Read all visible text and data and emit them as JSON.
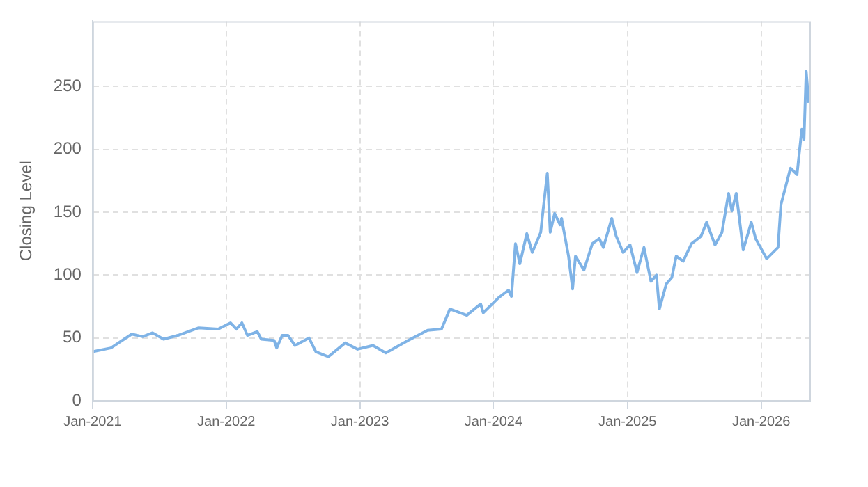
{
  "chart_data": {
    "type": "line",
    "ylabel": "Closing Level",
    "x": [
      "2021-01-01",
      "2021-02-20",
      "2021-04-18",
      "2021-05-18",
      "2021-06-14",
      "2021-07-14",
      "2021-08-22",
      "2021-10-18",
      "2021-12-10",
      "2022-01-13",
      "2022-01-29",
      "2022-02-13",
      "2022-02-28",
      "2022-03-27",
      "2022-04-07",
      "2022-05-12",
      "2022-05-19",
      "2022-06-03",
      "2022-06-19",
      "2022-07-08",
      "2022-08-15",
      "2022-09-03",
      "2022-10-07",
      "2022-11-22",
      "2022-12-26",
      "2023-02-06",
      "2023-03-13",
      "2023-05-13",
      "2023-07-05",
      "2023-08-12",
      "2023-09-04",
      "2023-10-20",
      "2023-11-27",
      "2023-12-04",
      "2024-01-15",
      "2024-02-11",
      "2024-02-19",
      "2024-03-01",
      "2024-03-13",
      "2024-04-01",
      "2024-04-16",
      "2024-05-09",
      "2024-05-16",
      "2024-05-27",
      "2024-06-04",
      "2024-06-16",
      "2024-07-01",
      "2024-07-05",
      "2024-07-24",
      "2024-08-04",
      "2024-08-12",
      "2024-09-04",
      "2024-09-27",
      "2024-10-16",
      "2024-10-27",
      "2024-11-19",
      "2024-12-01",
      "2024-12-20",
      "2025-01-08",
      "2025-01-27",
      "2025-02-15",
      "2025-03-06",
      "2025-03-21",
      "2025-03-29",
      "2025-04-17",
      "2025-05-02",
      "2025-05-14",
      "2025-06-02",
      "2025-06-25",
      "2025-07-21",
      "2025-08-05",
      "2025-08-28",
      "2025-09-16",
      "2025-10-04",
      "2025-10-13",
      "2025-10-25",
      "2025-11-13",
      "2025-12-05",
      "2025-12-17",
      "2026-01-16",
      "2026-02-16",
      "2026-02-24",
      "2026-03-22",
      "2026-04-09",
      "2026-04-22",
      "2026-04-28",
      "2026-05-04",
      "2026-05-11"
    ],
    "series": [
      {
        "color": "#7fb3e6",
        "values": [
          39,
          42,
          53,
          51,
          54,
          49,
          52,
          58,
          57,
          62,
          57,
          62,
          52,
          55,
          49,
          48,
          42,
          52,
          52,
          44,
          50,
          39,
          35,
          46,
          41,
          44,
          38,
          48,
          56,
          57,
          73,
          68,
          77,
          70,
          82,
          88,
          83,
          125,
          109,
          133,
          118,
          134,
          153,
          181,
          134,
          149,
          140,
          145,
          115,
          89,
          115,
          104,
          125,
          129,
          122,
          145,
          131,
          118,
          124,
          102,
          122,
          95,
          100,
          73,
          93,
          98,
          115,
          111,
          125,
          131,
          142,
          124,
          134,
          165,
          151,
          165,
          120,
          142,
          129,
          113,
          122,
          156,
          185,
          180,
          216,
          208,
          262,
          237
        ]
      }
    ],
    "xlim": [
      "2021-01-01",
      "2026-05-13"
    ],
    "xticks": [
      {
        "value": "2021-01",
        "label": "Jan-2021"
      },
      {
        "value": "2022-01",
        "label": "Jan-2022"
      },
      {
        "value": "2023-01",
        "label": "Jan-2023"
      },
      {
        "value": "2024-01",
        "label": "Jan-2024"
      },
      {
        "value": "2025-01",
        "label": "Jan-2025"
      },
      {
        "value": "2026-01",
        "label": "Jan-2026"
      }
    ],
    "ylim": [
      0,
      302
    ],
    "yticks": [
      0,
      50,
      100,
      150,
      200,
      250
    ],
    "grid": true,
    "line_style": "solid",
    "marker": "none",
    "legend": false
  }
}
